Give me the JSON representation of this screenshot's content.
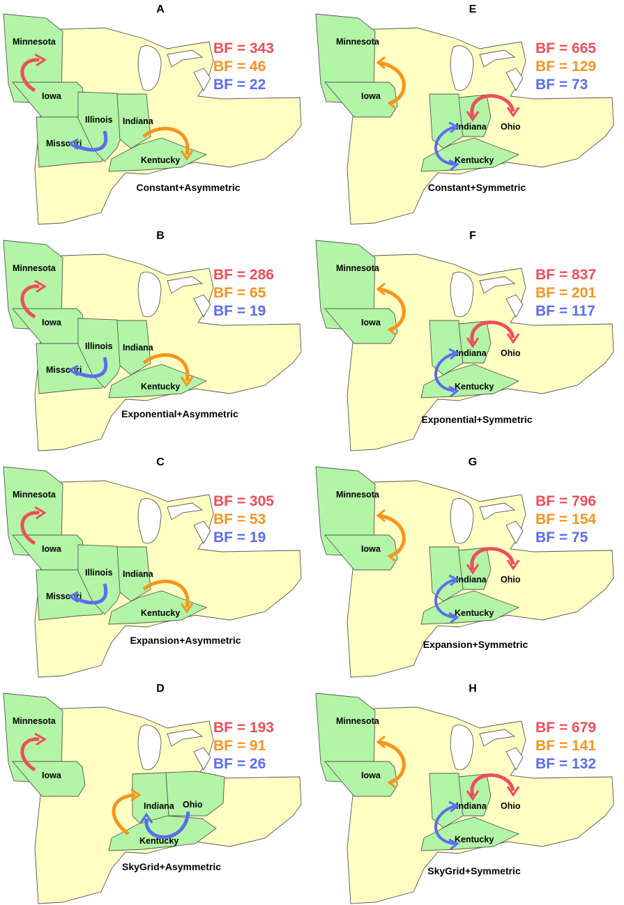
{
  "colors": {
    "red": "#f04d5a",
    "orange": "#f7941d",
    "blue": "#5a6cf0",
    "highlight": "#b2f5a6",
    "land": "#ffffc3"
  },
  "panels": [
    {
      "letter": "A",
      "caption": "Constant+Asymmetric",
      "bf": [
        "BF = 343",
        "BF = 46",
        "BF = 22"
      ],
      "states": [
        "Minnesota",
        "Iowa",
        "Illinois",
        "Missouri",
        "Indiana",
        "Kentucky"
      ]
    },
    {
      "letter": "E",
      "caption": "Constant+Symmetric",
      "bf": [
        "BF = 665",
        "BF = 129",
        "BF = 73"
      ],
      "states": [
        "Minnesota",
        "Iowa",
        "Indiana",
        "Ohio",
        "Kentucky"
      ]
    },
    {
      "letter": "B",
      "caption": "Exponential+Asymmetric",
      "bf": [
        "BF = 286",
        "BF = 65",
        "BF = 19"
      ],
      "states": [
        "Minnesota",
        "Iowa",
        "Illinois",
        "Missouri",
        "Indiana",
        "Kentucky"
      ]
    },
    {
      "letter": "F",
      "caption": "Exponential+Symmetric",
      "bf": [
        "BF = 837",
        "BF = 201",
        "BF = 117"
      ],
      "states": [
        "Minnesota",
        "Iowa",
        "Indiana",
        "Ohio",
        "Kentucky"
      ]
    },
    {
      "letter": "C",
      "caption": "Expansion+Asymmetric",
      "bf": [
        "BF = 305",
        "BF = 53",
        "BF = 19"
      ],
      "states": [
        "Minnesota",
        "Iowa",
        "Illinois",
        "Missouri",
        "Indiana",
        "Kentucky"
      ]
    },
    {
      "letter": "G",
      "caption": "Expansion+Symmetric",
      "bf": [
        "BF = 796",
        "BF = 154",
        "BF = 75"
      ],
      "states": [
        "Minnesota",
        "Iowa",
        "Indiana",
        "Ohio",
        "Kentucky"
      ]
    },
    {
      "letter": "D",
      "caption": "SkyGrid+Asymmetric",
      "bf": [
        "BF = 193",
        "BF = 91",
        "BF = 26"
      ],
      "states": [
        "Minnesota",
        "Iowa",
        "Indiana",
        "Ohio",
        "Kentucky"
      ]
    },
    {
      "letter": "H",
      "caption": "SkyGrid+Symmetric",
      "bf": [
        "BF = 679",
        "BF = 141",
        "BF = 132"
      ],
      "states": [
        "Minnesota",
        "Iowa",
        "Indiana",
        "Ohio",
        "Kentucky"
      ]
    }
  ]
}
